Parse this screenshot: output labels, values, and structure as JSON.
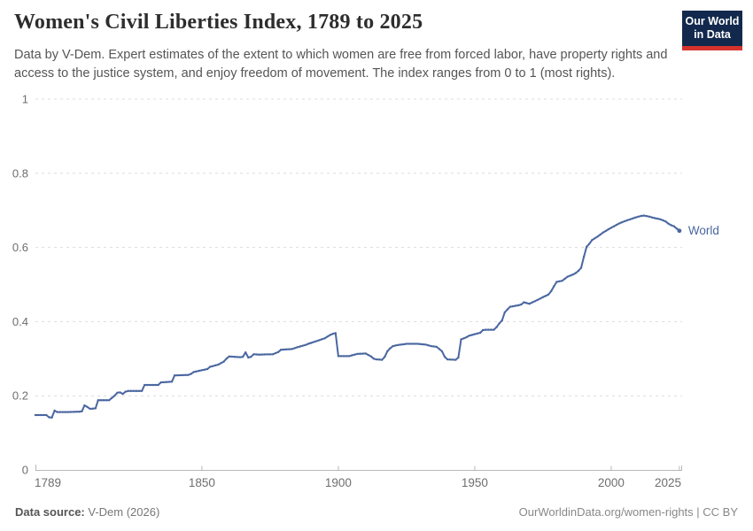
{
  "header": {
    "title": "Women's Civil Liberties Index, 1789 to 2025",
    "subtitle": "Data by V-Dem. Expert estimates of the extent to which women are free from forced labor, have property rights and access to the justice system, and enjoy freedom of movement. The index ranges from 0 to 1 (most rights)."
  },
  "logo": {
    "line1": "Our World",
    "line2": "in Data",
    "bg_color": "#12294d",
    "accent_color": "#d5332c"
  },
  "chart_data": {
    "type": "line",
    "title": "Women's Civil Liberties Index, 1789 to 2025",
    "xlabel": "",
    "ylabel": "",
    "xlim": [
      1789,
      2026
    ],
    "ylim": [
      0,
      1
    ],
    "x_ticks": [
      1789,
      1850,
      1900,
      1950,
      2000,
      2025
    ],
    "y_ticks": [
      0,
      0.2,
      0.4,
      0.6,
      0.8,
      1
    ],
    "grid": "horizontal-dashed",
    "legend_position": "line-end",
    "colors": {
      "line": "#4a67a0",
      "grid": "#dcdcdc",
      "axis": "#b8b8b8",
      "tick_label": "#6e6e6e"
    },
    "series": [
      {
        "name": "World",
        "color": "#4a67a0",
        "points": [
          [
            1789,
            0.148
          ],
          [
            1793,
            0.148
          ],
          [
            1794,
            0.142
          ],
          [
            1795,
            0.141
          ],
          [
            1796,
            0.16
          ],
          [
            1797,
            0.156
          ],
          [
            1800,
            0.156
          ],
          [
            1805,
            0.157
          ],
          [
            1806,
            0.158
          ],
          [
            1807,
            0.174
          ],
          [
            1808,
            0.17
          ],
          [
            1809,
            0.165
          ],
          [
            1811,
            0.166
          ],
          [
            1812,
            0.188
          ],
          [
            1816,
            0.188
          ],
          [
            1818,
            0.2
          ],
          [
            1819,
            0.208
          ],
          [
            1820,
            0.209
          ],
          [
            1821,
            0.205
          ],
          [
            1822,
            0.211
          ],
          [
            1823,
            0.213
          ],
          [
            1828,
            0.213
          ],
          [
            1829,
            0.229
          ],
          [
            1834,
            0.229
          ],
          [
            1835,
            0.236
          ],
          [
            1839,
            0.238
          ],
          [
            1840,
            0.255
          ],
          [
            1845,
            0.256
          ],
          [
            1846,
            0.259
          ],
          [
            1847,
            0.264
          ],
          [
            1850,
            0.269
          ],
          [
            1852,
            0.272
          ],
          [
            1853,
            0.278
          ],
          [
            1856,
            0.284
          ],
          [
            1858,
            0.292
          ],
          [
            1859,
            0.3
          ],
          [
            1860,
            0.306
          ],
          [
            1864,
            0.304
          ],
          [
            1865,
            0.305
          ],
          [
            1866,
            0.317
          ],
          [
            1867,
            0.303
          ],
          [
            1868,
            0.305
          ],
          [
            1869,
            0.312
          ],
          [
            1871,
            0.311
          ],
          [
            1876,
            0.312
          ],
          [
            1878,
            0.318
          ],
          [
            1879,
            0.324
          ],
          [
            1883,
            0.326
          ],
          [
            1885,
            0.331
          ],
          [
            1888,
            0.337
          ],
          [
            1889,
            0.34
          ],
          [
            1891,
            0.345
          ],
          [
            1893,
            0.35
          ],
          [
            1895,
            0.355
          ],
          [
            1897,
            0.364
          ],
          [
            1898,
            0.367
          ],
          [
            1899,
            0.369
          ],
          [
            1900,
            0.307
          ],
          [
            1904,
            0.307
          ],
          [
            1906,
            0.311
          ],
          [
            1907,
            0.313
          ],
          [
            1910,
            0.314
          ],
          [
            1912,
            0.306
          ],
          [
            1913,
            0.3
          ],
          [
            1914,
            0.298
          ],
          [
            1916,
            0.297
          ],
          [
            1917,
            0.305
          ],
          [
            1918,
            0.32
          ],
          [
            1919,
            0.328
          ],
          [
            1920,
            0.334
          ],
          [
            1922,
            0.337
          ],
          [
            1925,
            0.34
          ],
          [
            1929,
            0.34
          ],
          [
            1932,
            0.338
          ],
          [
            1934,
            0.334
          ],
          [
            1936,
            0.332
          ],
          [
            1938,
            0.32
          ],
          [
            1939,
            0.305
          ],
          [
            1940,
            0.298
          ],
          [
            1943,
            0.297
          ],
          [
            1944,
            0.303
          ],
          [
            1945,
            0.352
          ],
          [
            1947,
            0.358
          ],
          [
            1948,
            0.362
          ],
          [
            1950,
            0.366
          ],
          [
            1952,
            0.37
          ],
          [
            1953,
            0.377
          ],
          [
            1954,
            0.378
          ],
          [
            1957,
            0.378
          ],
          [
            1958,
            0.385
          ],
          [
            1959,
            0.395
          ],
          [
            1960,
            0.403
          ],
          [
            1961,
            0.425
          ],
          [
            1962,
            0.433
          ],
          [
            1963,
            0.44
          ],
          [
            1966,
            0.444
          ],
          [
            1967,
            0.446
          ],
          [
            1968,
            0.452
          ],
          [
            1970,
            0.448
          ],
          [
            1972,
            0.455
          ],
          [
            1974,
            0.462
          ],
          [
            1975,
            0.466
          ],
          [
            1977,
            0.473
          ],
          [
            1978,
            0.482
          ],
          [
            1979,
            0.495
          ],
          [
            1980,
            0.507
          ],
          [
            1982,
            0.51
          ],
          [
            1984,
            0.521
          ],
          [
            1986,
            0.527
          ],
          [
            1987,
            0.531
          ],
          [
            1988,
            0.537
          ],
          [
            1989,
            0.545
          ],
          [
            1990,
            0.575
          ],
          [
            1991,
            0.602
          ],
          [
            1992,
            0.61
          ],
          [
            1993,
            0.62
          ],
          [
            1995,
            0.629
          ],
          [
            1997,
            0.64
          ],
          [
            1999,
            0.649
          ],
          [
            2001,
            0.657
          ],
          [
            2003,
            0.665
          ],
          [
            2005,
            0.671
          ],
          [
            2007,
            0.676
          ],
          [
            2009,
            0.681
          ],
          [
            2011,
            0.685
          ],
          [
            2012,
            0.686
          ],
          [
            2014,
            0.683
          ],
          [
            2016,
            0.679
          ],
          [
            2018,
            0.676
          ],
          [
            2019,
            0.673
          ],
          [
            2020,
            0.67
          ],
          [
            2021,
            0.664
          ],
          [
            2022,
            0.66
          ],
          [
            2023,
            0.657
          ],
          [
            2024,
            0.651
          ],
          [
            2025,
            0.645
          ]
        ]
      }
    ]
  },
  "footer": {
    "source_label": "Data source:",
    "source_value": " V-Dem (2026)",
    "right_text": "OurWorldinData.org/women-rights | CC BY"
  }
}
